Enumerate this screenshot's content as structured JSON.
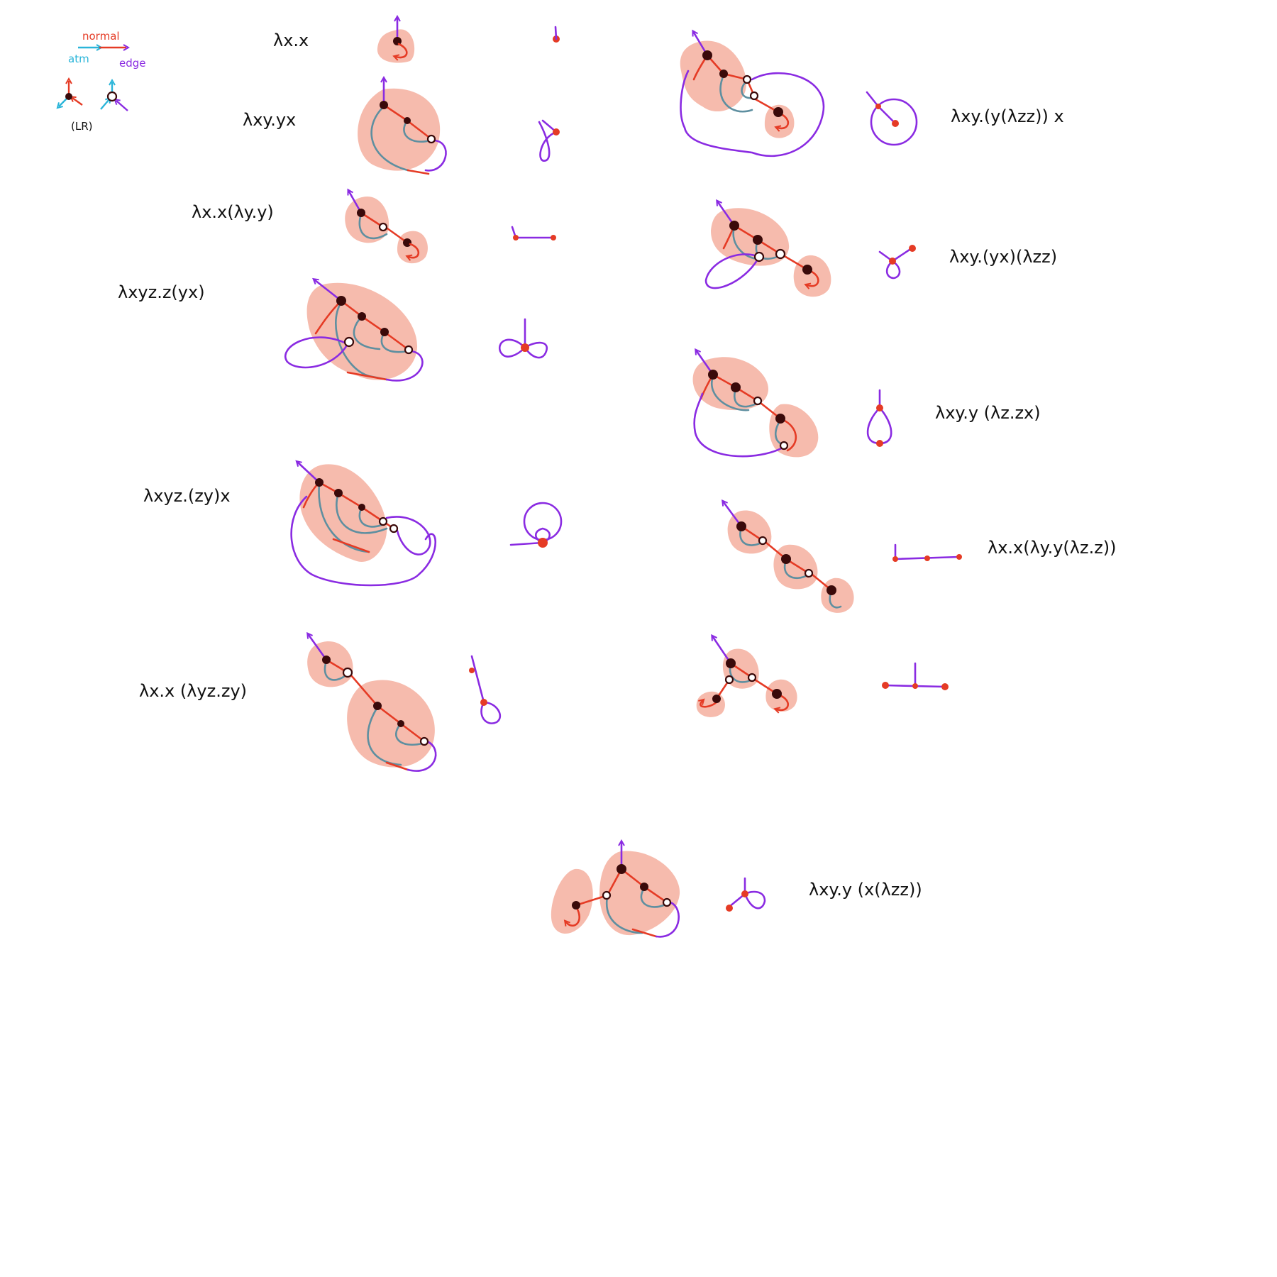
{
  "legend": {
    "normal": "normal",
    "atm": "atm",
    "edge": "edge",
    "lr": "(LR)"
  },
  "terms": [
    "λx.x",
    "λxy.yx",
    "λx.x(λy.y)",
    "λxyz.z(yx)",
    "λxyz.(zy)x",
    "λx.x (λyz.zy)",
    "λxy.(y(λzz)) x",
    "λxy.(yx)(λzz)",
    "λxy.y (λz.zx)",
    "λx.x(λy.y(λz.z))",
    "λxy.y (x(λzz))"
  ],
  "colors": {
    "blob": "#f4a896",
    "normal": "#e53b25",
    "atm": "#5e8fa0",
    "edge": "#8a2be2",
    "node": "#3a0a0a"
  }
}
